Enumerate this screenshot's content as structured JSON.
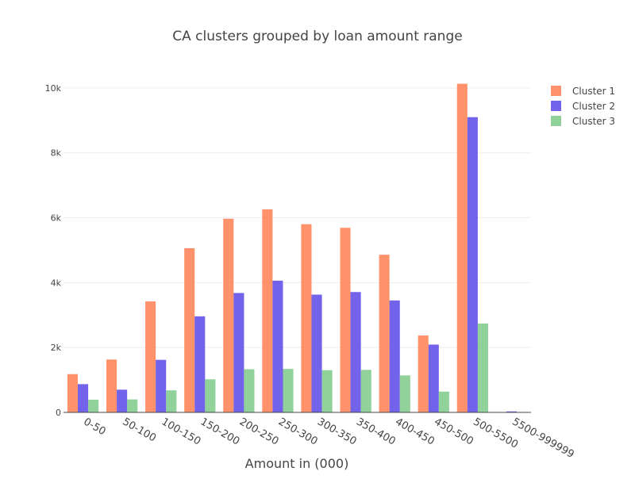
{
  "chart_data": {
    "type": "bar",
    "title": "CA clusters grouped by loan amount range",
    "xlabel": "Amount in (000)",
    "ylabel": "",
    "categories": [
      "0-50",
      "50-100",
      "100-150",
      "150-200",
      "200-250",
      "250-300",
      "300-350",
      "350-400",
      "400-450",
      "450-500",
      "500-5500",
      "5500-999999"
    ],
    "series": [
      {
        "name": "Cluster 1",
        "color": "#ff7f50",
        "values": [
          1180,
          1630,
          3420,
          5060,
          5970,
          6260,
          5800,
          5690,
          4860,
          2370,
          10130,
          10
        ]
      },
      {
        "name": "Cluster 2",
        "color": "#5b48e8",
        "values": [
          870,
          700,
          1620,
          2960,
          3680,
          4060,
          3630,
          3710,
          3450,
          2090,
          9100,
          30
        ]
      },
      {
        "name": "Cluster 3",
        "color": "#7ec988",
        "values": [
          390,
          400,
          680,
          1020,
          1330,
          1340,
          1300,
          1310,
          1140,
          640,
          2740,
          10
        ]
      }
    ],
    "ylim": [
      0,
      11000
    ],
    "y_ticks": [
      0,
      2000,
      4000,
      6000,
      8000,
      10000
    ],
    "y_tick_labels": [
      "0",
      "2k",
      "4k",
      "6k",
      "8k",
      "10k"
    ],
    "grid": true,
    "legend_position": "top-right",
    "x_tick_angle": 30
  }
}
